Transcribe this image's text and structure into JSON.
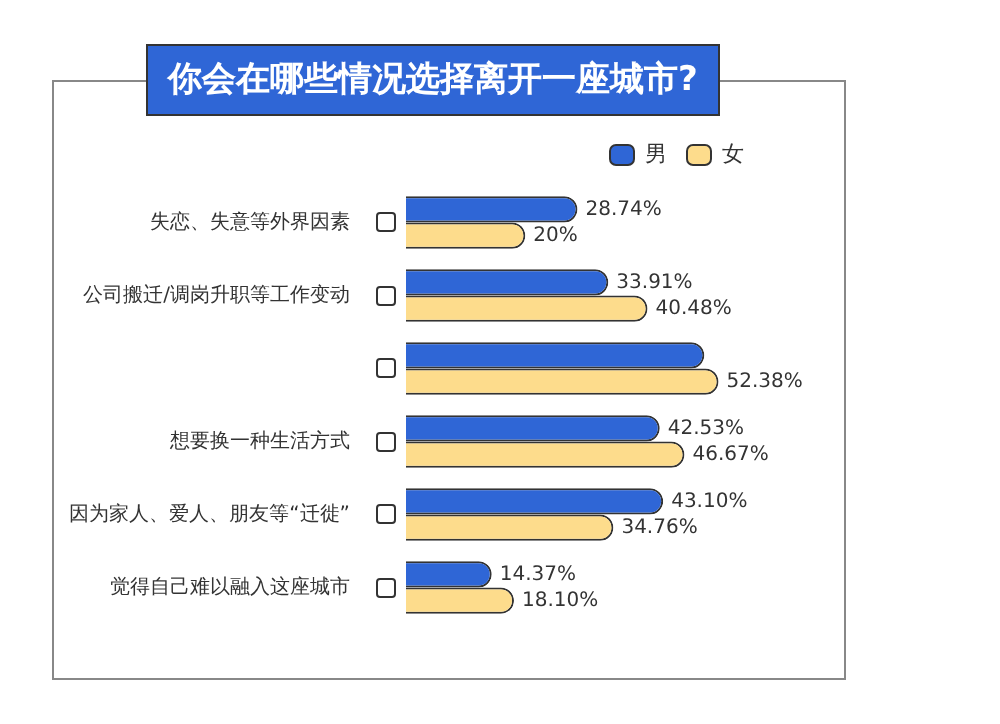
{
  "chart_data": {
    "type": "bar",
    "orientation": "horizontal",
    "title": "你会在哪些情况选择离开一座城市?",
    "categories": [
      "失恋、失意等外界因素",
      "公司搬迁/调岗升职等工作变动",
      null,
      "想要换一种生活方式",
      "因为家人、爱人、朋友等“迁徙”",
      "觉得自己难以融入这座城市"
    ],
    "legend": "top right",
    "series": [
      {
        "name": "男",
        "color": "#2f66d6",
        "values": [
          28.74,
          33.91,
          50,
          42.53,
          43.1,
          14.37
        ],
        "value_labels": [
          "28.74%",
          "33.91%",
          null,
          "42.53%",
          "43.10%",
          "14.37%"
        ]
      },
      {
        "name": "女",
        "color": "#fddc8c",
        "values": [
          20,
          40.48,
          52.38,
          46.67,
          34.76,
          18.1
        ],
        "value_labels": [
          "20%",
          "40.48%",
          "52.38%",
          "46.67%",
          "34.76%",
          "18.10%"
        ]
      }
    ]
  }
}
